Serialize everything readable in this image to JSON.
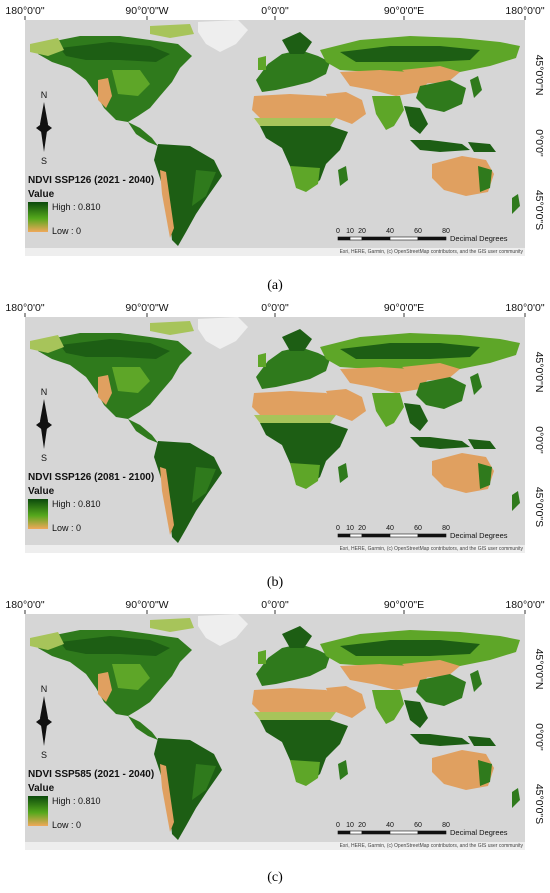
{
  "panels": [
    {
      "title": "NDVI SSP126 (2021 - 2040)",
      "caption": "(a)",
      "scenario": "ssp126",
      "period": "2021-2040"
    },
    {
      "title": "NDVI SSP126 (2081 - 2100)",
      "caption": "(b)",
      "scenario": "ssp126",
      "period": "2081-2100"
    },
    {
      "title": "NDVI SSP585 (2021 - 2040)",
      "caption": "(c)",
      "scenario": "ssp585",
      "period": "2021-2040"
    }
  ],
  "map": {
    "top_labels": [
      "180°0'0\"",
      "90°0'0\"W",
      "0°0'0\"",
      "90°0'0\"E",
      "180°0'0\""
    ],
    "right_labels": [
      "45°0'0\"N",
      "0°0'0\"",
      "45°0'0\"S"
    ],
    "north_letter": "N",
    "south_letter": "S",
    "legend": {
      "value_label": "Value",
      "high": "High : 0.810",
      "low": "Low : 0",
      "color_high": "#0b4a0b",
      "color_mid": "#55a81c",
      "color_low": "#f0a85a"
    },
    "scale": {
      "ticks": [
        "0",
        "10",
        "20",
        "40",
        "60",
        "80"
      ],
      "unit": "Decimal Degrees"
    },
    "attribution": "Esri, HERE, Garmin, (c) OpenStreetMap contributors, and the GIS user community",
    "colors": {
      "ocean": "#d6d6d6",
      "ice": "#eeeeee",
      "forest_dark": "#1d5e14",
      "forest": "#2f7a1c",
      "grass": "#5ea628",
      "light_veg": "#a7c45a",
      "desert": "#e0a060"
    }
  }
}
